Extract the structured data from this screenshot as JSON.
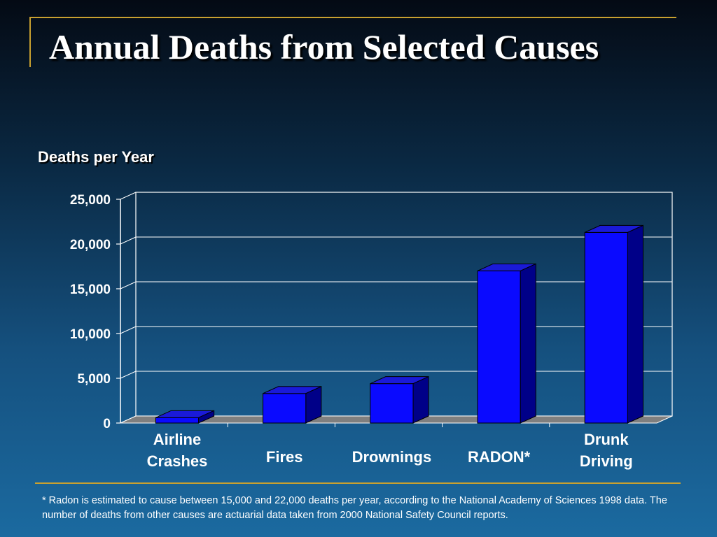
{
  "title": "Annual Deaths from Selected Causes",
  "footnote": "* Radon is estimated to cause between 15,000 and 22,000 deaths per year, according to the National Academy of Sciences 1998 data.  The number of deaths from other causes are actuarial data taken from 2000 National Safety Council reports.",
  "colors": {
    "bar_front": "#0a0aff",
    "bar_side": "#000088",
    "bar_top": "#1a1ad8",
    "floor": "#7f7f7f",
    "accent_gold": "#c8a030"
  },
  "chart_data": {
    "type": "bar",
    "ylabel": "Deaths per Year",
    "xlabel": "",
    "categories": [
      [
        "Airline",
        "Crashes"
      ],
      [
        "Fires"
      ],
      [
        "Drownings"
      ],
      [
        "RADON*"
      ],
      [
        "Drunk",
        "Driving"
      ]
    ],
    "values": [
      600,
      3300,
      4400,
      17000,
      21300
    ],
    "ylim": [
      0,
      25000
    ],
    "yticks": [
      0,
      5000,
      10000,
      15000,
      20000,
      25000
    ],
    "ytick_labels": [
      "0",
      "5,000",
      "10,000",
      "15,000",
      "20,000",
      "25,000"
    ],
    "grid": true,
    "three_d": true
  }
}
